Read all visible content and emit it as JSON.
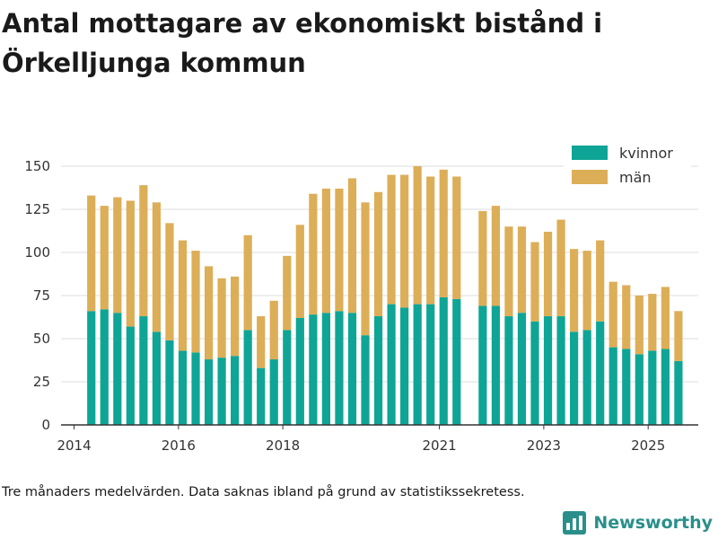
{
  "page": {
    "title": "Antal mottagare av ekonomiskt bistånd i Örkelljunga kommun",
    "footnote": "Tre månaders medelvärden. Data saknas ibland på grund av statistikssekretess.",
    "brand": "Newsworthy",
    "brand_icon": "newsworthy-logo-icon"
  },
  "colors": {
    "kvinnor": "#0ea596",
    "man": "#dcae58",
    "grid": "#dddddd",
    "axis": "#333333",
    "text": "#333333",
    "brand": "#2a8f8a"
  },
  "chart_data": {
    "type": "bar",
    "stacked": true,
    "title": "Antal mottagare av ekonomiskt bistånd i Örkelljunga kommun",
    "xlabel": "",
    "ylabel": "",
    "ylim": [
      0,
      150
    ],
    "yticks": [
      0,
      25,
      50,
      75,
      100,
      125,
      150
    ],
    "xlim": [
      2013.75,
      2025.96
    ],
    "xticks": [
      {
        "value": 2014,
        "label": "2014"
      },
      {
        "value": 2016,
        "label": "2016"
      },
      {
        "value": 2018,
        "label": "2018"
      },
      {
        "value": 2021,
        "label": "2021"
      },
      {
        "value": 2023,
        "label": "2023"
      },
      {
        "value": 2025,
        "label": "2025"
      }
    ],
    "grid": true,
    "legend": "top-right",
    "x": [
      2014.33,
      2014.58,
      2014.83,
      2015.08,
      2015.33,
      2015.58,
      2015.83,
      2016.08,
      2016.33,
      2016.58,
      2016.83,
      2017.08,
      2017.33,
      2017.58,
      2017.83,
      2018.08,
      2018.33,
      2018.58,
      2018.83,
      2019.08,
      2019.33,
      2019.58,
      2019.83,
      2020.08,
      2020.33,
      2020.58,
      2020.83,
      2021.08,
      2021.33,
      2021.83,
      2022.08,
      2022.33,
      2022.58,
      2022.83,
      2023.08,
      2023.33,
      2023.58,
      2023.83,
      2024.08,
      2024.33,
      2024.58,
      2024.83,
      2025.08,
      2025.33,
      2025.58
    ],
    "series": [
      {
        "name": "kvinnor",
        "values": [
          66,
          67,
          65,
          57,
          63,
          54,
          49,
          43,
          42,
          38,
          39,
          40,
          55,
          33,
          38,
          55,
          62,
          64,
          65,
          66,
          65,
          52,
          63,
          70,
          68,
          70,
          70,
          74,
          73,
          69,
          69,
          63,
          65,
          60,
          63,
          63,
          54,
          55,
          60,
          45,
          44,
          41,
          43,
          44,
          37
        ]
      },
      {
        "name": "män",
        "values": [
          67,
          60,
          67,
          73,
          76,
          75,
          68,
          64,
          59,
          54,
          46,
          46,
          55,
          30,
          34,
          43,
          54,
          70,
          72,
          71,
          78,
          77,
          72,
          75,
          77,
          80,
          74,
          74,
          71,
          55,
          58,
          52,
          50,
          46,
          49,
          56,
          48,
          46,
          47,
          38,
          37,
          34,
          33,
          36,
          29
        ]
      }
    ]
  }
}
